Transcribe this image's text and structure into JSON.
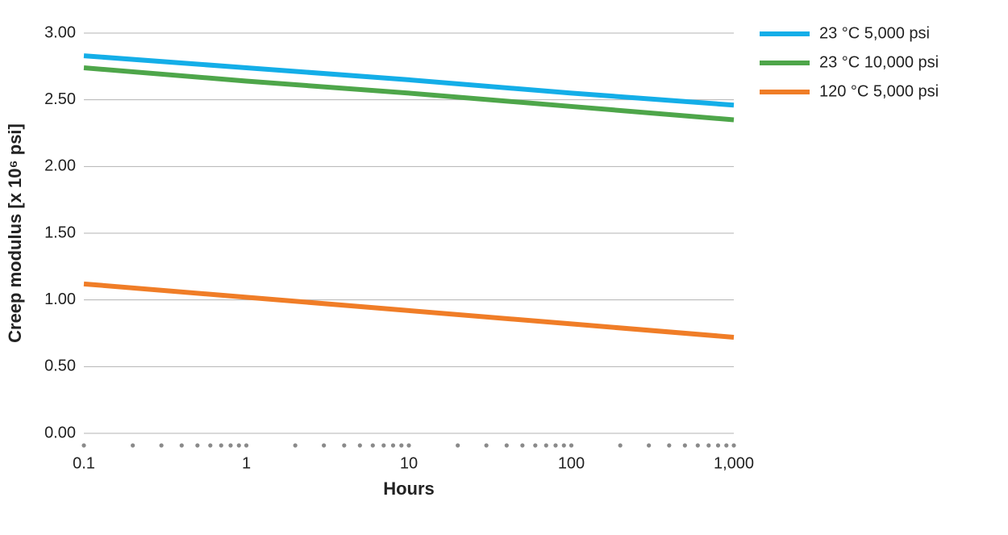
{
  "chart_data": {
    "type": "line",
    "x_label": "Hours",
    "y_label": "Creep modulus [x 10⁶ psi]",
    "x": [
      0.1,
      1,
      10,
      100,
      1000
    ],
    "series": [
      {
        "name": "23 °C 5,000 psi",
        "color": "#14aee8",
        "values": [
          2.83,
          2.74,
          2.65,
          2.55,
          2.46
        ]
      },
      {
        "name": "23 °C 10,000 psi",
        "color": "#4ea64a",
        "values": [
          2.74,
          2.64,
          2.55,
          2.45,
          2.35
        ]
      },
      {
        "name": "120 °C 5,000 psi",
        "color": "#f07d27",
        "values": [
          1.12,
          1.02,
          0.92,
          0.82,
          0.72
        ]
      }
    ],
    "xlog": true,
    "xlim": [
      0.1,
      1000
    ],
    "xticks": [
      0.1,
      1,
      10,
      100,
      {
        "value": 1000,
        "label": "1,000"
      }
    ],
    "xminorticks": [
      0.2,
      0.3,
      0.4,
      0.5,
      0.6,
      0.7,
      0.8,
      0.9,
      2,
      3,
      4,
      5,
      6,
      7,
      8,
      9,
      20,
      30,
      40,
      50,
      60,
      70,
      80,
      90,
      200,
      300,
      400,
      500,
      600,
      700,
      800,
      900
    ],
    "ylim": [
      0,
      3
    ],
    "yticks": [
      {
        "value": 0,
        "label": "0.00"
      },
      {
        "value": 0.5,
        "label": "0.50"
      },
      {
        "value": 1,
        "label": "1.00"
      },
      {
        "value": 1.5,
        "label": "1.50"
      },
      {
        "value": 2,
        "label": "2.00"
      },
      {
        "value": 2.5,
        "label": "2.50"
      },
      {
        "value": 3,
        "label": "3.00"
      }
    ],
    "grid": true,
    "legend": "top-right"
  }
}
